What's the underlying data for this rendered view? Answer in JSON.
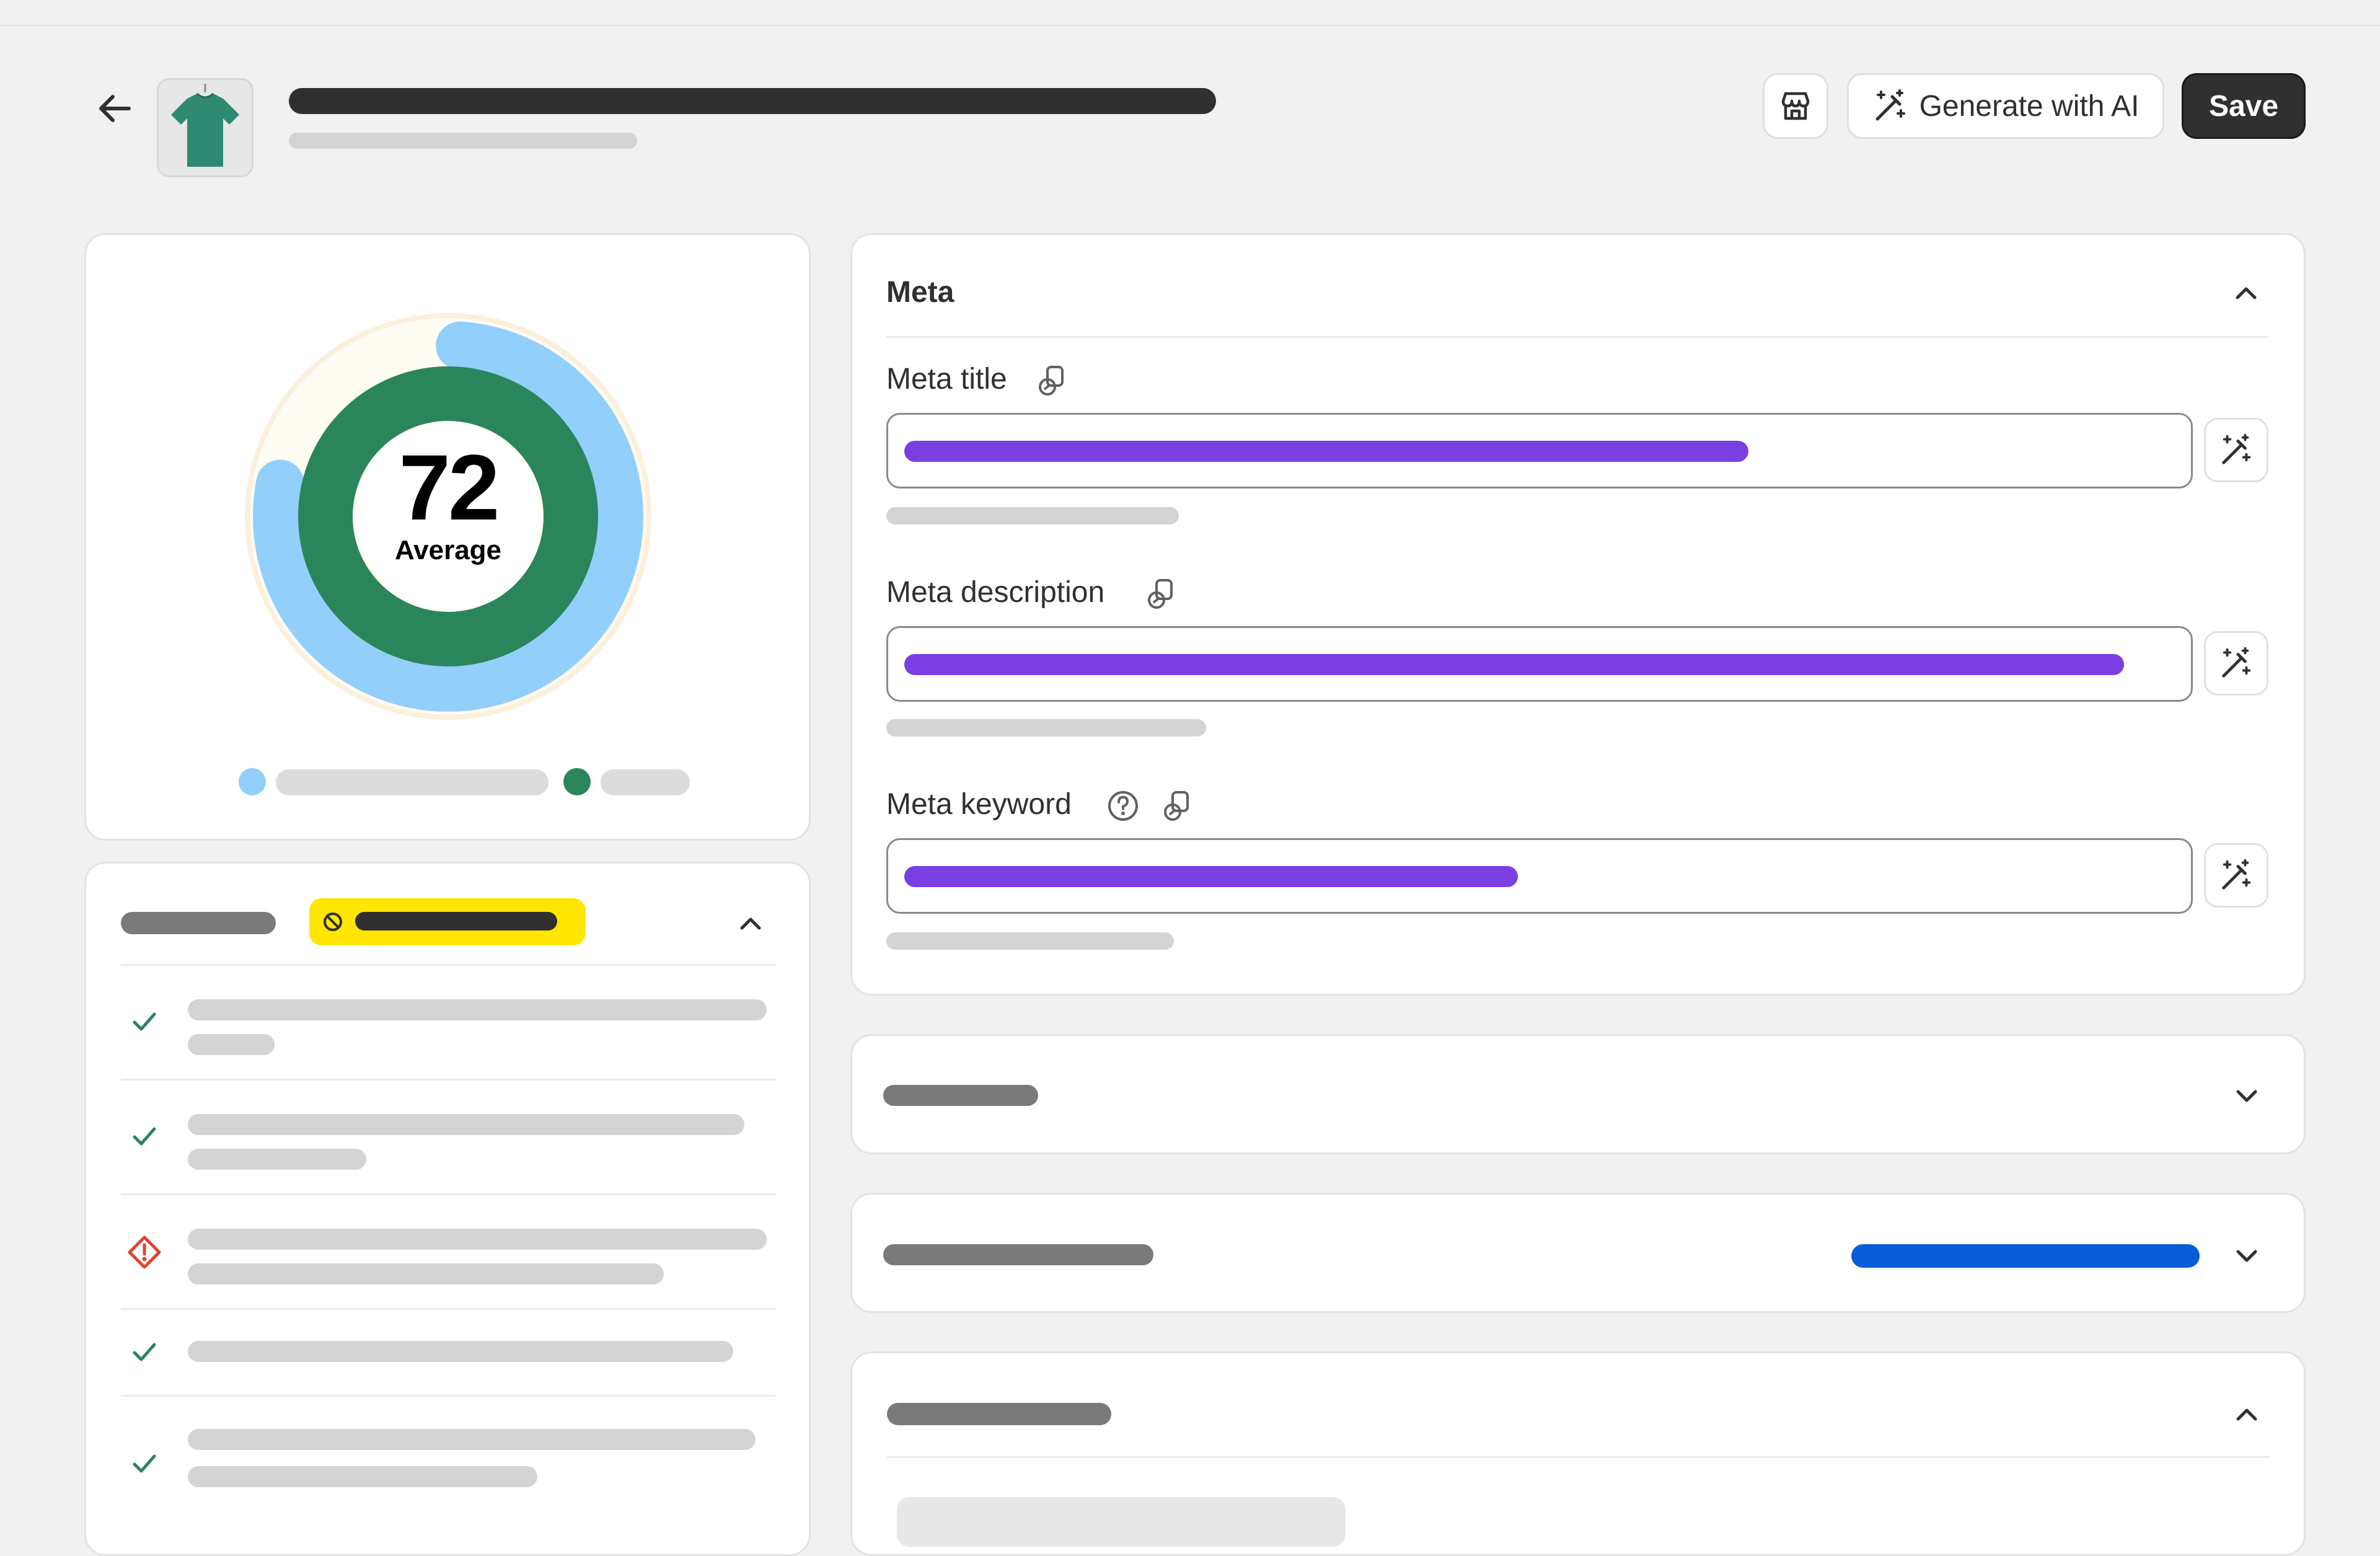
{
  "header": {
    "back_icon": "arrow-left-icon",
    "product_thumbnail_icon": "tshirt-icon",
    "storefront_icon": "store-icon",
    "generate_label": "Generate with AI",
    "generate_icon": "magic-wand-icon",
    "save_label": "Save"
  },
  "score": {
    "value": "72",
    "label": "Average",
    "ring_outer_color": "#93cffb",
    "ring_inner_color": "#2b855b"
  },
  "checklist": {
    "badge_color": "#ffe600",
    "items": [
      {
        "status": "pass",
        "icon": "check-icon"
      },
      {
        "status": "pass",
        "icon": "check-icon"
      },
      {
        "status": "warning",
        "icon": "alert-diamond-icon"
      },
      {
        "status": "pass",
        "icon": "check-icon"
      },
      {
        "status": "pass",
        "icon": "check-icon"
      }
    ]
  },
  "meta": {
    "title": "Meta",
    "fields": [
      {
        "label": "Meta title",
        "fill_color": "#7b3ee0"
      },
      {
        "label": "Meta description",
        "fill_color": "#7b3ee0"
      },
      {
        "label": "Meta keyword",
        "fill_color": "#7b3ee0"
      }
    ]
  },
  "colors": {
    "accent_purple": "#7b3ee0",
    "accent_blue": "#0a5dd6",
    "success_green": "#2b855b",
    "critical_red": "#e0432f",
    "badge_yellow": "#ffe600"
  }
}
